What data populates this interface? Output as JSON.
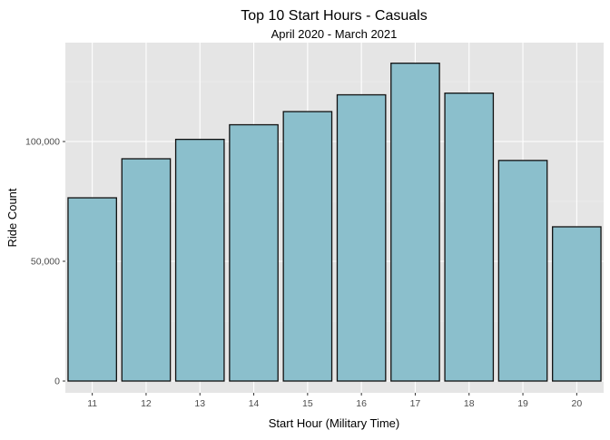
{
  "chart_data": {
    "type": "bar",
    "title": "Top 10 Start Hours - Casuals",
    "subtitle": "April 2020 - March 2021",
    "xlabel": "Start Hour (Military Time)",
    "ylabel": "Ride Count",
    "categories": [
      "11",
      "12",
      "13",
      "14",
      "15",
      "16",
      "17",
      "18",
      "19",
      "20"
    ],
    "values": [
      76500,
      92800,
      100900,
      107000,
      112500,
      119500,
      132700,
      120200,
      92100,
      64400
    ],
    "ylim": [
      0,
      140000
    ],
    "yticks": [
      0,
      50000,
      100000
    ],
    "ytick_labels": [
      "0",
      "50,000",
      "100,000"
    ],
    "grid": true,
    "legend": "none",
    "colors": {
      "bar_fill": "#8bbfcc",
      "bar_stroke": "#111111",
      "panel_bg": "#e5e5e5",
      "grid_major": "#ffffff",
      "grid_minor": "#f2f2f2",
      "tick_text": "#4d4d4d",
      "title_text": "#000000"
    }
  }
}
